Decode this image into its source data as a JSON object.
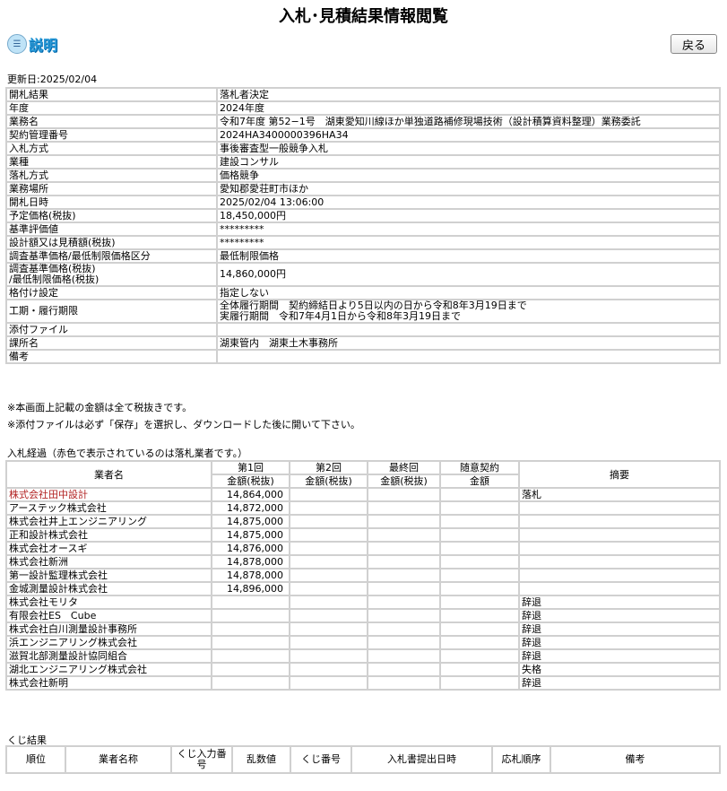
{
  "page_title": "入札･見積結果情報閲覧",
  "help_label": "説明",
  "back_button": "戻る",
  "updated": "更新日:2025/02/04",
  "info": [
    [
      "開札結果",
      "落札者決定"
    ],
    [
      "年度",
      "2024年度"
    ],
    [
      "業務名",
      "令和7年度 第52−1号　湖東愛知川線ほか単独道路補修現場技術（設計積算資料整理）業務委託"
    ],
    [
      "契約管理番号",
      "2024HA3400000396HA34"
    ],
    [
      "入札方式",
      "事後審査型一般競争入札"
    ],
    [
      "業種",
      "建設コンサル"
    ],
    [
      "落札方式",
      "価格競争"
    ],
    [
      "業務場所",
      "愛知郡愛荘町市ほか"
    ],
    [
      "開札日時",
      "2025/02/04 13:06:00"
    ],
    [
      "予定価格(税抜)",
      "18,450,000円"
    ],
    [
      "基準評価値",
      "*********"
    ],
    [
      "設計額又は見積額(税抜)",
      "*********"
    ],
    [
      "調査基準価格/最低制限価格区分",
      "最低制限価格"
    ],
    [
      "調査基準価格(税抜)\n/最低制限価格(税抜)",
      "14,860,000円"
    ],
    [
      "格付け設定",
      "指定しない"
    ],
    [
      "工期・履行期限",
      "全体履行期間　契約締結日より5日以内の日から令和8年3月19日まで\n実履行期間　令和7年4月1日から令和8年3月19日まで"
    ],
    [
      "添付ファイル",
      ""
    ],
    [
      "課所名",
      "湖東管内　湖東土木事務所"
    ],
    [
      "備考",
      ""
    ]
  ],
  "notes": [
    "※本画面上記載の金額は全て税抜きです。",
    "※添付ファイルは必ず「保存」を選択し、ダウンロードした後に開いて下さい。"
  ],
  "bids_caption": "入札経過（赤色で表示されているのは落札業者です。）",
  "bids_header": {
    "name": "業者名",
    "r1": "第1回",
    "r2": "第2回",
    "final": "最終回",
    "negotiated": "随意契約",
    "remarks": "摘要",
    "amount_tax": "金額(税抜)",
    "amount": "金額"
  },
  "winner_color": "#b22222",
  "bids": [
    {
      "name": "株式会社田中設計",
      "r1": "14,864,000",
      "remarks": "落札",
      "winner": true
    },
    {
      "name": "アーステック株式会社",
      "r1": "14,872,000",
      "remarks": ""
    },
    {
      "name": "株式会社井上エンジニアリング",
      "r1": "14,875,000",
      "remarks": ""
    },
    {
      "name": "正和設計株式会社",
      "r1": "14,875,000",
      "remarks": ""
    },
    {
      "name": "株式会社オースギ",
      "r1": "14,876,000",
      "remarks": ""
    },
    {
      "name": "株式会社新洲",
      "r1": "14,878,000",
      "remarks": ""
    },
    {
      "name": "第一設計監理株式会社",
      "r1": "14,878,000",
      "remarks": ""
    },
    {
      "name": "金城測量設計株式会社",
      "r1": "14,896,000",
      "remarks": ""
    },
    {
      "name": "株式会社モリタ",
      "r1": "",
      "remarks": "辞退"
    },
    {
      "name": "有限会社ES　Cube",
      "r1": "",
      "remarks": "辞退"
    },
    {
      "name": "株式会社白川測量設計事務所",
      "r1": "",
      "remarks": "辞退"
    },
    {
      "name": "浜エンジニアリング株式会社",
      "r1": "",
      "remarks": "辞退"
    },
    {
      "name": "滋賀北部測量設計協同組合",
      "r1": "",
      "remarks": "辞退"
    },
    {
      "name": "湖北エンジニアリング株式会社",
      "r1": "",
      "remarks": "失格"
    },
    {
      "name": "株式会社新明",
      "r1": "",
      "remarks": "辞退"
    }
  ],
  "lottery_caption": "くじ結果",
  "lottery_header": [
    "順位",
    "業者名称",
    "くじ入力番号",
    "乱数値",
    "くじ番号",
    "入札書提出日時",
    "応札順序",
    "備考"
  ]
}
